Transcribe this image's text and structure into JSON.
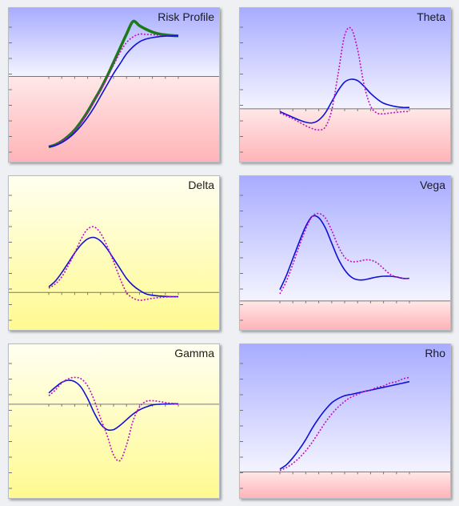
{
  "colors": {
    "blue_top": "#a8acff",
    "blue_bottom": "#f4f4ff",
    "pink_top": "#ffe8e8",
    "pink_bottom": "#ffb4b8",
    "yellow_top": "#fffff0",
    "yellow_bottom": "#fffa90",
    "series_now": "#1010d8",
    "series_dotted": "#c010c0",
    "series_expiry": "#1a7a1a",
    "axis": "#777777"
  },
  "chart_data": [
    {
      "id": "risk",
      "type": "line",
      "title": "Risk Profile",
      "background": "blue-pink",
      "baseline": 0.56,
      "ylim": [
        0,
        1
      ],
      "x": [
        0,
        0.05,
        0.1,
        0.15,
        0.2,
        0.25,
        0.3,
        0.35,
        0.4,
        0.45,
        0.5,
        0.55,
        0.6,
        0.65,
        0.7,
        0.75,
        0.8,
        0.85,
        0.9,
        0.95,
        1
      ],
      "series": [
        {
          "key": "expiry",
          "style": "solid-thick",
          "values": [
            0.06,
            0.075,
            0.1,
            0.135,
            0.18,
            0.24,
            0.31,
            0.39,
            0.47,
            0.56,
            0.66,
            0.76,
            0.86,
            0.95,
            0.92,
            0.895,
            0.875,
            0.862,
            0.855,
            0.85,
            0.848
          ]
        },
        {
          "key": "dotted",
          "style": "dotted",
          "values": [
            0.06,
            0.074,
            0.098,
            0.132,
            0.175,
            0.23,
            0.3,
            0.38,
            0.46,
            0.55,
            0.64,
            0.73,
            0.8,
            0.84,
            0.86,
            0.858,
            0.856,
            0.853,
            0.851,
            0.849,
            0.848
          ]
        },
        {
          "key": "now",
          "style": "solid",
          "values": [
            0.06,
            0.07,
            0.09,
            0.12,
            0.16,
            0.21,
            0.27,
            0.34,
            0.42,
            0.5,
            0.58,
            0.65,
            0.72,
            0.77,
            0.805,
            0.825,
            0.835,
            0.842,
            0.846,
            0.847,
            0.848
          ]
        }
      ]
    },
    {
      "id": "theta",
      "type": "line",
      "title": "Theta",
      "background": "blue-pink",
      "baseline": 0.33,
      "ylim": [
        0,
        1
      ],
      "x": [
        0,
        0.05,
        0.1,
        0.15,
        0.2,
        0.25,
        0.3,
        0.35,
        0.4,
        0.45,
        0.5,
        0.55,
        0.6,
        0.65,
        0.7,
        0.75,
        0.8,
        0.85,
        0.9,
        0.95,
        1
      ],
      "series": [
        {
          "key": "now",
          "style": "solid",
          "values": [
            0.31,
            0.29,
            0.27,
            0.25,
            0.235,
            0.23,
            0.25,
            0.3,
            0.38,
            0.46,
            0.52,
            0.54,
            0.53,
            0.49,
            0.44,
            0.4,
            0.37,
            0.355,
            0.345,
            0.34,
            0.34
          ]
        },
        {
          "key": "dotted",
          "style": "dotted",
          "values": [
            0.3,
            0.28,
            0.26,
            0.235,
            0.21,
            0.19,
            0.18,
            0.2,
            0.32,
            0.58,
            0.85,
            0.9,
            0.75,
            0.5,
            0.35,
            0.3,
            0.295,
            0.3,
            0.305,
            0.31,
            0.31
          ]
        }
      ]
    },
    {
      "id": "delta",
      "type": "line",
      "title": "Delta",
      "background": "yellow",
      "baseline": 0.22,
      "ylim": [
        0,
        1
      ],
      "x": [
        0,
        0.05,
        0.1,
        0.15,
        0.2,
        0.25,
        0.3,
        0.35,
        0.4,
        0.45,
        0.5,
        0.55,
        0.6,
        0.65,
        0.7,
        0.75,
        0.8,
        0.85,
        0.9,
        0.95,
        1
      ],
      "series": [
        {
          "key": "now",
          "style": "solid",
          "values": [
            0.26,
            0.3,
            0.36,
            0.43,
            0.5,
            0.56,
            0.6,
            0.61,
            0.585,
            0.53,
            0.46,
            0.39,
            0.32,
            0.27,
            0.235,
            0.21,
            0.2,
            0.195,
            0.192,
            0.19,
            0.19
          ]
        },
        {
          "key": "dotted",
          "style": "dotted",
          "values": [
            0.25,
            0.28,
            0.33,
            0.41,
            0.5,
            0.6,
            0.67,
            0.685,
            0.64,
            0.55,
            0.44,
            0.32,
            0.22,
            0.18,
            0.165,
            0.17,
            0.178,
            0.184,
            0.187,
            0.19,
            0.19
          ]
        }
      ]
    },
    {
      "id": "vega",
      "type": "line",
      "title": "Vega",
      "background": "blue-pink",
      "baseline": 0.16,
      "ylim": [
        0,
        1
      ],
      "x": [
        0,
        0.05,
        0.1,
        0.15,
        0.2,
        0.25,
        0.3,
        0.35,
        0.4,
        0.45,
        0.5,
        0.55,
        0.6,
        0.65,
        0.7,
        0.75,
        0.8,
        0.85,
        0.9,
        0.95,
        1
      ],
      "series": [
        {
          "key": "now",
          "style": "solid",
          "values": [
            0.24,
            0.34,
            0.46,
            0.58,
            0.69,
            0.76,
            0.75,
            0.68,
            0.57,
            0.46,
            0.38,
            0.33,
            0.31,
            0.31,
            0.32,
            0.33,
            0.335,
            0.335,
            0.33,
            0.32,
            0.32
          ]
        },
        {
          "key": "dotted",
          "style": "dotted",
          "values": [
            0.21,
            0.3,
            0.42,
            0.55,
            0.67,
            0.76,
            0.78,
            0.75,
            0.66,
            0.55,
            0.47,
            0.44,
            0.44,
            0.45,
            0.45,
            0.43,
            0.39,
            0.35,
            0.33,
            0.32,
            0.32
          ]
        }
      ]
    },
    {
      "id": "gamma",
      "type": "line",
      "title": "Gamma",
      "background": "yellow",
      "baseline": 0.62,
      "ylim": [
        0,
        1
      ],
      "x": [
        0,
        0.05,
        0.1,
        0.15,
        0.2,
        0.25,
        0.3,
        0.35,
        0.4,
        0.45,
        0.5,
        0.55,
        0.6,
        0.65,
        0.7,
        0.75,
        0.8,
        0.85,
        0.9,
        0.95,
        1
      ],
      "series": [
        {
          "key": "now",
          "style": "solid",
          "values": [
            0.7,
            0.74,
            0.775,
            0.79,
            0.78,
            0.74,
            0.66,
            0.56,
            0.48,
            0.44,
            0.44,
            0.47,
            0.51,
            0.55,
            0.58,
            0.6,
            0.615,
            0.62,
            0.622,
            0.623,
            0.623
          ]
        },
        {
          "key": "dotted",
          "style": "dotted",
          "values": [
            0.68,
            0.72,
            0.77,
            0.8,
            0.81,
            0.8,
            0.75,
            0.65,
            0.52,
            0.4,
            0.26,
            0.22,
            0.33,
            0.5,
            0.6,
            0.64,
            0.645,
            0.64,
            0.632,
            0.626,
            0.623
          ]
        }
      ]
    },
    {
      "id": "rho",
      "type": "line",
      "title": "Rho",
      "background": "blue-pink",
      "baseline": 0.14,
      "ylim": [
        0,
        1
      ],
      "x": [
        0,
        0.05,
        0.1,
        0.15,
        0.2,
        0.25,
        0.3,
        0.35,
        0.4,
        0.45,
        0.5,
        0.55,
        0.6,
        0.65,
        0.7,
        0.75,
        0.8,
        0.85,
        0.9,
        0.95,
        1
      ],
      "series": [
        {
          "key": "now",
          "style": "solid",
          "values": [
            0.16,
            0.19,
            0.24,
            0.3,
            0.37,
            0.45,
            0.52,
            0.58,
            0.63,
            0.66,
            0.68,
            0.69,
            0.7,
            0.71,
            0.72,
            0.73,
            0.74,
            0.75,
            0.76,
            0.77,
            0.78
          ]
        },
        {
          "key": "dotted",
          "style": "dotted",
          "values": [
            0.15,
            0.17,
            0.2,
            0.24,
            0.29,
            0.35,
            0.42,
            0.49,
            0.55,
            0.6,
            0.64,
            0.67,
            0.69,
            0.71,
            0.72,
            0.74,
            0.75,
            0.77,
            0.78,
            0.8,
            0.81
          ]
        }
      ]
    }
  ]
}
